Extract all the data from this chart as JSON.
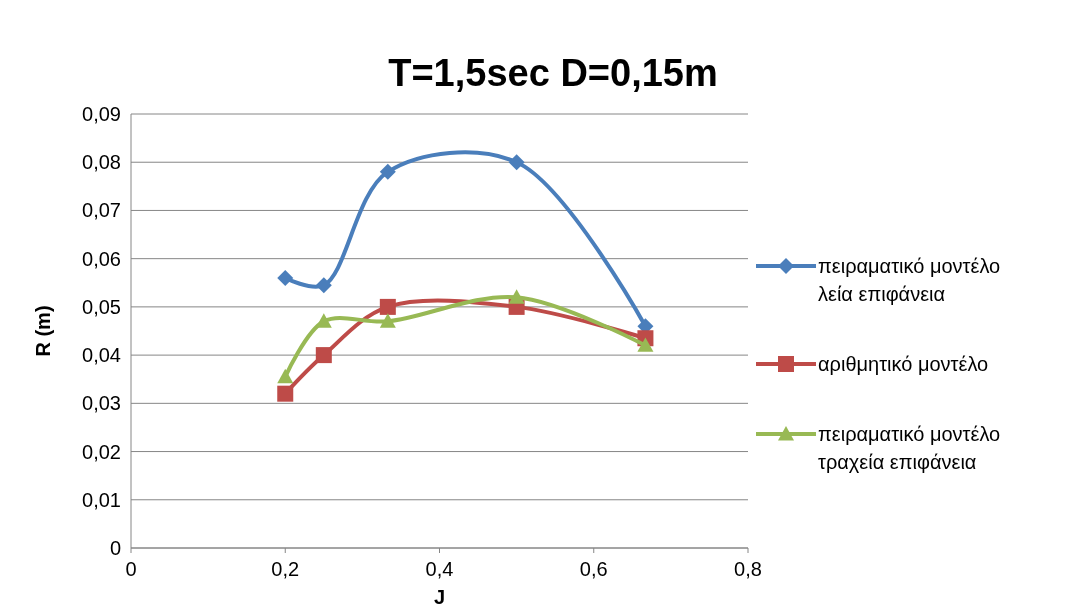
{
  "chart_data": {
    "type": "line",
    "title": "T=1,5sec D=0,15m",
    "xlabel": "J",
    "ylabel": "R (m)",
    "x": [
      0.2,
      0.25,
      0.333,
      0.5,
      0.667
    ],
    "series": [
      {
        "name": "πειραματικό μοντέλο λεία επιφάνεια",
        "color": "#4a7ebb",
        "marker": "diamond",
        "values": [
          0.056,
          0.0545,
          0.078,
          0.08,
          0.046
        ]
      },
      {
        "name": "αριθμητικό μοντέλο",
        "color": "#be4b48",
        "marker": "square",
        "values": [
          0.032,
          0.04,
          0.05,
          0.05,
          0.0435
        ]
      },
      {
        "name": "πειραματικό μοντέλο τραχεία επιφάνεια",
        "color": "#98b954",
        "marker": "triangle",
        "values": [
          0.0355,
          0.047,
          0.047,
          0.052,
          0.042
        ]
      }
    ],
    "xlim": [
      0,
      0.8
    ],
    "xticks": [
      {
        "value": 0,
        "label": "0"
      },
      {
        "value": 0.2,
        "label": "0,2"
      },
      {
        "value": 0.4,
        "label": "0,4"
      },
      {
        "value": 0.6,
        "label": "0,6"
      },
      {
        "value": 0.8,
        "label": "0,8"
      }
    ],
    "ylim": [
      0,
      0.09
    ],
    "yticks": [
      {
        "value": 0,
        "label": "0"
      },
      {
        "value": 0.01,
        "label": "0,01"
      },
      {
        "value": 0.02,
        "label": "0,02"
      },
      {
        "value": 0.03,
        "label": "0,03"
      },
      {
        "value": 0.04,
        "label": "0,04"
      },
      {
        "value": 0.05,
        "label": "0,05"
      },
      {
        "value": 0.06,
        "label": "0,06"
      },
      {
        "value": 0.07,
        "label": "0,07"
      },
      {
        "value": 0.08,
        "label": "0,08"
      },
      {
        "value": 0.09,
        "label": "0,09"
      }
    ],
    "grid": "y",
    "legend": "right",
    "line_style": "solid"
  }
}
